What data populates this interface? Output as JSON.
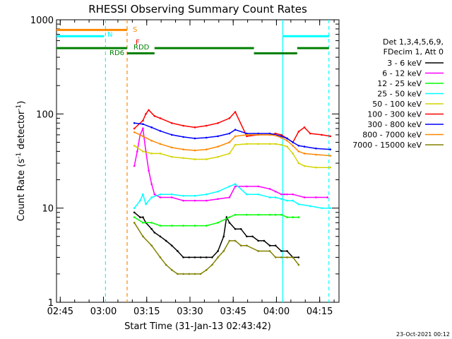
{
  "chart_data": {
    "type": "line",
    "title": "RHESSI Observing Summary Count Rates",
    "xlabel": "Start Time (31-Jan-13 02:43:42)",
    "ylabel_main": "Count Rate (s",
    "ylabel_sup1": "-1",
    "ylabel_mid": " detector",
    "ylabel_sup2": "-1",
    "ylabel_end": ")",
    "x_units": "minutes after 02:43:42",
    "xlim": [
      0,
      98
    ],
    "ylim": [
      1,
      1000
    ],
    "yscale": "log",
    "x_ticks": [
      {
        "label": "02:45",
        "value": 1.3
      },
      {
        "label": "03:00",
        "value": 16.3
      },
      {
        "label": "03:15",
        "value": 31.3
      },
      {
        "label": "03:30",
        "value": 46.3
      },
      {
        "label": "03:45",
        "value": 61.3
      },
      {
        "label": "04:00",
        "value": 76.3
      },
      {
        "label": "04:15",
        "value": 91.3
      }
    ],
    "y_ticks": [
      {
        "label": "1",
        "value": 1
      },
      {
        "label": "10",
        "value": 10
      },
      {
        "label": "100",
        "value": 100
      },
      {
        "label": "1000",
        "value": 1000
      }
    ],
    "legend_header": [
      "Det 1,3,4,5,6,9,",
      "FDecim 1, Att 0"
    ],
    "series": [
      {
        "name": "3 - 6 keV",
        "color": "#000000",
        "x": [
          27,
          29,
          30,
          31,
          33,
          34,
          36,
          38,
          40,
          42,
          44,
          46,
          48,
          50,
          52,
          54,
          56,
          58,
          59,
          60,
          62,
          64,
          66,
          68,
          70,
          72,
          74,
          76,
          78,
          80,
          82,
          84
        ],
        "y": [
          9,
          8,
          8,
          7,
          6,
          5.5,
          5,
          4.5,
          4,
          3.5,
          3,
          3,
          3,
          3,
          3,
          3,
          3.5,
          5,
          8,
          7,
          6,
          6,
          5,
          5,
          4.5,
          4.5,
          4,
          4,
          3.5,
          3.5,
          3,
          3
        ]
      },
      {
        "name": "6 - 12 keV",
        "color": "#ff00ff",
        "x": [
          27,
          28,
          29,
          30,
          31,
          32,
          33,
          34,
          36,
          40,
          44,
          48,
          52,
          56,
          60,
          62,
          66,
          70,
          74,
          76,
          78,
          79,
          80,
          82,
          86,
          90,
          94
        ],
        "y": [
          28,
          40,
          60,
          70,
          40,
          25,
          18,
          14,
          13,
          13,
          12,
          12,
          12,
          12.5,
          13,
          17,
          17,
          17,
          16,
          15,
          14,
          14,
          14,
          14,
          13,
          13,
          13
        ]
      },
      {
        "name": "12 - 25 keV",
        "color": "#00ff00",
        "x": [
          27,
          30,
          33,
          36,
          40,
          44,
          48,
          52,
          56,
          60,
          62,
          66,
          70,
          74,
          76,
          78,
          80,
          82,
          84
        ],
        "y": [
          8,
          7,
          7,
          6.5,
          6.5,
          6.5,
          6.5,
          6.5,
          7,
          8,
          8.5,
          8.5,
          8.5,
          8.5,
          8.5,
          8.5,
          8,
          8,
          8
        ]
      },
      {
        "name": "25 - 50 keV",
        "color": "#00ffff",
        "x": [
          27,
          29,
          30,
          31,
          33,
          36,
          40,
          44,
          48,
          52,
          56,
          60,
          62,
          66,
          70,
          74,
          76,
          78,
          80,
          82,
          84,
          88,
          92,
          95
        ],
        "y": [
          10,
          12,
          14,
          11,
          13,
          14,
          14,
          13.5,
          13.5,
          14,
          15,
          17,
          18,
          14,
          14,
          13,
          13,
          12.5,
          12,
          12,
          11,
          10.5,
          10,
          10
        ]
      },
      {
        "name": "50 - 100 keV",
        "color": "#d4d400",
        "x": [
          27,
          30,
          33,
          36,
          40,
          44,
          48,
          52,
          56,
          60,
          62,
          66,
          70,
          74,
          76,
          78,
          80,
          82,
          84,
          86,
          90,
          95
        ],
        "y": [
          46,
          40,
          38,
          38,
          35,
          34,
          33,
          33,
          35,
          38,
          47,
          48,
          48,
          48,
          48,
          47,
          45,
          38,
          30,
          28,
          27,
          27
        ]
      },
      {
        "name": "100 - 300 keV",
        "color": "#ff0000",
        "x": [
          27,
          30,
          31,
          32,
          34,
          36,
          40,
          44,
          48,
          52,
          56,
          60,
          62,
          66,
          70,
          74,
          76,
          78,
          80,
          82,
          84,
          86,
          88,
          92,
          95
        ],
        "y": [
          70,
          85,
          100,
          110,
          95,
          90,
          80,
          75,
          72,
          75,
          80,
          90,
          105,
          58,
          60,
          60,
          62,
          60,
          55,
          50,
          65,
          72,
          62,
          60,
          58
        ]
      },
      {
        "name": "300 - 800 keV",
        "color": "#0000ff",
        "x": [
          27,
          30,
          33,
          36,
          40,
          44,
          48,
          52,
          56,
          60,
          62,
          66,
          70,
          74,
          76,
          78,
          80,
          82,
          84,
          86,
          90,
          95
        ],
        "y": [
          80,
          78,
          72,
          66,
          60,
          57,
          55,
          56,
          58,
          62,
          68,
          62,
          62,
          62,
          60,
          58,
          55,
          50,
          46,
          45,
          43,
          42
        ]
      },
      {
        "name": "800 - 7000 keV",
        "color": "#ff8800",
        "x": [
          27,
          30,
          33,
          36,
          40,
          44,
          48,
          52,
          56,
          60,
          62,
          66,
          70,
          74,
          76,
          78,
          80,
          82,
          84,
          86,
          90,
          95
        ],
        "y": [
          64,
          58,
          52,
          48,
          44,
          42,
          41,
          42,
          45,
          50,
          58,
          60,
          60,
          60,
          59,
          56,
          52,
          46,
          40,
          38,
          37,
          36
        ]
      },
      {
        "name": "7000 - 15000 keV",
        "color": "#808000",
        "x": [
          27,
          30,
          33,
          36,
          38,
          40,
          42,
          44,
          46,
          48,
          50,
          52,
          54,
          56,
          58,
          60,
          62,
          64,
          66,
          70,
          74,
          76,
          78,
          80,
          82,
          84
        ],
        "y": [
          7,
          5,
          4,
          3,
          2.5,
          2.2,
          2,
          2,
          2,
          2,
          2,
          2.2,
          2.5,
          3,
          3.5,
          4.5,
          4.5,
          4,
          4,
          3.5,
          3.5,
          3,
          3,
          3,
          3,
          2.5
        ]
      }
    ],
    "vlines": [
      {
        "x": 17,
        "color": "#00ffff",
        "style": "dashed"
      },
      {
        "x": 24.5,
        "color": "#ff8800",
        "style": "dashed"
      },
      {
        "x": 78.5,
        "color": "#00ffff",
        "style": "solid"
      },
      {
        "x": 94.5,
        "color": "#00ffff",
        "style": "dashed"
      }
    ],
    "flag_bars": [
      {
        "label": "S",
        "color": "#ff8800",
        "y": 780,
        "segments": [
          [
            0,
            24.5
          ]
        ]
      },
      {
        "label": "N",
        "color": "#00ffff",
        "y": 670,
        "segments": [
          [
            0,
            16.5
          ],
          [
            78.5,
            94.5
          ]
        ]
      },
      {
        "label": "F",
        "color": "#ff0000",
        "y": 520,
        "segments": []
      },
      {
        "label": "RDD",
        "color": "#008000",
        "y": 500,
        "segments": [
          [
            0,
            24.5
          ],
          [
            34,
            68.5
          ],
          [
            83.5,
            94.5
          ]
        ]
      },
      {
        "label": "RD6",
        "color": "#008000",
        "y": 440,
        "segments": [
          [
            24.5,
            34
          ],
          [
            68.5,
            83.5
          ]
        ]
      }
    ],
    "legend_placement": "right",
    "timestamp": "23-Oct-2021 00:12"
  }
}
